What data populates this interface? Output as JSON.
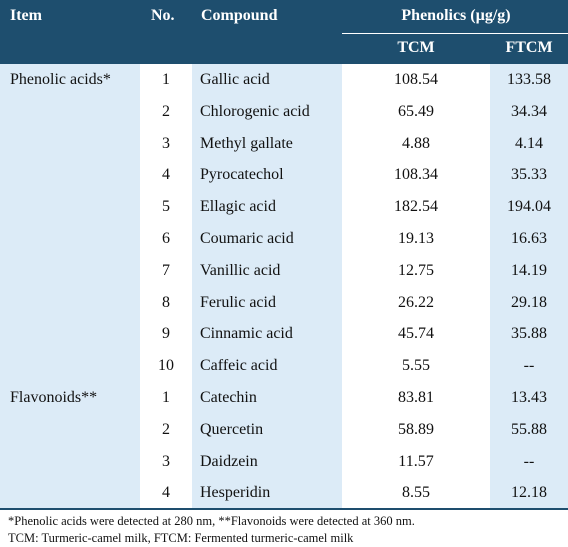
{
  "header": {
    "item": "Item",
    "no": "No.",
    "compound": "Compound",
    "phenolics": "Phenolics (µg/g)",
    "tcm": "TCM",
    "ftcm": "FTCM"
  },
  "rows": [
    {
      "item": "Phenolic acids*",
      "no": "1",
      "compound": "Gallic acid",
      "tcm": "108.54",
      "ftcm": "133.58"
    },
    {
      "item": "",
      "no": "2",
      "compound": "Chlorogenic acid",
      "tcm": "65.49",
      "ftcm": "34.34"
    },
    {
      "item": "",
      "no": "3",
      "compound": "Methyl gallate",
      "tcm": "4.88",
      "ftcm": "4.14"
    },
    {
      "item": "",
      "no": "4",
      "compound": "Pyrocatechol",
      "tcm": "108.34",
      "ftcm": "35.33"
    },
    {
      "item": "",
      "no": "5",
      "compound": "Ellagic acid",
      "tcm": "182.54",
      "ftcm": "194.04"
    },
    {
      "item": "",
      "no": "6",
      "compound": "Coumaric acid",
      "tcm": "19.13",
      "ftcm": "16.63"
    },
    {
      "item": "",
      "no": "7",
      "compound": "Vanillic acid",
      "tcm": "12.75",
      "ftcm": "14.19"
    },
    {
      "item": "",
      "no": "8",
      "compound": "Ferulic acid",
      "tcm": "26.22",
      "ftcm": "29.18"
    },
    {
      "item": "",
      "no": "9",
      "compound": "Cinnamic acid",
      "tcm": "45.74",
      "ftcm": "35.88"
    },
    {
      "item": "",
      "no": "10",
      "compound": "Caffeic acid",
      "tcm": "5.55",
      "ftcm": "--"
    },
    {
      "item": "Flavonoids**",
      "no": "1",
      "compound": "Catechin",
      "tcm": "83.81",
      "ftcm": "13.43"
    },
    {
      "item": "",
      "no": "2",
      "compound": "Quercetin",
      "tcm": "58.89",
      "ftcm": "55.88"
    },
    {
      "item": "",
      "no": "3",
      "compound": "Daidzein",
      "tcm": "11.57",
      "ftcm": "--"
    },
    {
      "item": "",
      "no": "4",
      "compound": "Hesperidin",
      "tcm": "8.55",
      "ftcm": "12.18"
    }
  ],
  "footnotes": {
    "line1": "*Phenolic acids were detected at 280 nm, **Flavonoids were detected at 360 nm.",
    "line2": "TCM: Turmeric-camel milk, FTCM: Fermented turmeric-camel milk"
  }
}
